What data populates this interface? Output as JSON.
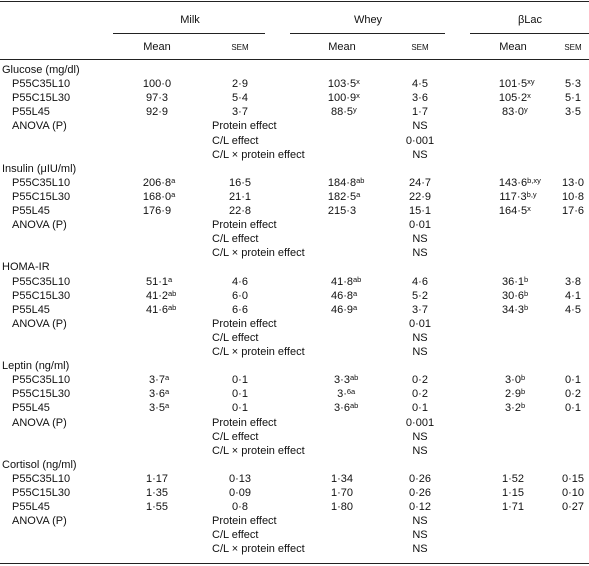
{
  "header": {
    "groups": [
      "Milk",
      "Whey",
      "βLac"
    ],
    "subheaders": [
      "Mean",
      "sem",
      "Mean",
      "sem",
      "Mean",
      "sem"
    ]
  },
  "sections": [
    {
      "title": "Glucose (mg/dl)",
      "rows": [
        {
          "label": "P55C35L10",
          "cells": [
            {
              "value": "100·0"
            },
            {
              "value": "2·9"
            },
            {
              "value": "103·5",
              "sup": "x"
            },
            {
              "value": "4·5"
            },
            {
              "value": "101·5",
              "sup": "xy"
            },
            {
              "value": "5·3"
            }
          ]
        },
        {
          "label": "P55C15L30",
          "cells": [
            {
              "value": "97·3"
            },
            {
              "value": "5·4"
            },
            {
              "value": "100·9",
              "sup": "x"
            },
            {
              "value": "3·6"
            },
            {
              "value": "105·2",
              "sup": "x"
            },
            {
              "value": "5·1"
            }
          ]
        },
        {
          "label": "P55L45",
          "cells": [
            {
              "value": "92·9"
            },
            {
              "value": "3·7"
            },
            {
              "value": "88·5",
              "sup": "y"
            },
            {
              "value": "1·7"
            },
            {
              "value": "83·0",
              "sup": "y"
            },
            {
              "value": "3·5"
            }
          ]
        }
      ],
      "anova": {
        "label": "ANOVA (P)",
        "effects": [
          {
            "name": "Protein effect",
            "value": "NS"
          },
          {
            "name": "C/L effect",
            "value": "0·001"
          },
          {
            "name": "C/L × protein effect",
            "value": "NS"
          }
        ]
      }
    },
    {
      "title": "Insulin (μIU/ml)",
      "rows": [
        {
          "label": "P55C35L10",
          "cells": [
            {
              "value": "206·8",
              "sup": "a"
            },
            {
              "value": "16·5"
            },
            {
              "value": "184·8",
              "sup": "ab"
            },
            {
              "value": "24·7"
            },
            {
              "value": "143·6",
              "sup": "b,xy"
            },
            {
              "value": "13·0"
            }
          ]
        },
        {
          "label": "P55C15L30",
          "cells": [
            {
              "value": "168·0",
              "sup": "a"
            },
            {
              "value": "21·1"
            },
            {
              "value": "182·5",
              "sup": "a"
            },
            {
              "value": "22·9"
            },
            {
              "value": "117·3",
              "sup": "b,y"
            },
            {
              "value": "10·8"
            }
          ]
        },
        {
          "label": "P55L45",
          "cells": [
            {
              "value": "176·9"
            },
            {
              "value": "22·8"
            },
            {
              "value": "215·3"
            },
            {
              "value": "15·1"
            },
            {
              "value": "164·5",
              "sup": "x"
            },
            {
              "value": "17·6"
            }
          ]
        }
      ],
      "anova": {
        "label": "ANOVA (P)",
        "effects": [
          {
            "name": "Protein effect",
            "value": "0·01"
          },
          {
            "name": "C/L effect",
            "value": "NS"
          },
          {
            "name": "C/L × protein effect",
            "value": "NS"
          }
        ]
      }
    },
    {
      "title": "HOMA-IR",
      "rows": [
        {
          "label": "P55C35L10",
          "cells": [
            {
              "value": "51·1",
              "sup": "a"
            },
            {
              "value": "4·6"
            },
            {
              "value": "41·8",
              "sup": "ab"
            },
            {
              "value": "4·6"
            },
            {
              "value": "36·1",
              "sup": "b"
            },
            {
              "value": "3·8"
            }
          ]
        },
        {
          "label": "P55C15L30",
          "cells": [
            {
              "value": "41·2",
              "sup": "ab"
            },
            {
              "value": "6·0"
            },
            {
              "value": "46·8",
              "sup": "a"
            },
            {
              "value": "5·2"
            },
            {
              "value": "30·6",
              "sup": "b"
            },
            {
              "value": "4·1"
            }
          ]
        },
        {
          "label": "P55L45",
          "cells": [
            {
              "value": "41·6",
              "sup": "ab"
            },
            {
              "value": "6·6"
            },
            {
              "value": "46·9",
              "sup": "a"
            },
            {
              "value": "3·7"
            },
            {
              "value": "34·3",
              "sup": "b"
            },
            {
              "value": "4·5"
            }
          ]
        }
      ],
      "anova": {
        "label": "ANOVA (P)",
        "effects": [
          {
            "name": "Protein effect",
            "value": "0·01"
          },
          {
            "name": "C/L effect",
            "value": "NS"
          },
          {
            "name": "C/L × protein effect",
            "value": "NS"
          }
        ]
      }
    },
    {
      "title": "Leptin (ng/ml)",
      "rows": [
        {
          "label": "P55C35L10",
          "cells": [
            {
              "value": "3·7",
              "sup": "a"
            },
            {
              "value": "0·1"
            },
            {
              "value": "3·3",
              "sup": "ab"
            },
            {
              "value": "0·2"
            },
            {
              "value": "3·0",
              "sup": "b"
            },
            {
              "value": "0·1"
            }
          ]
        },
        {
          "label": "P55C15L30",
          "cells": [
            {
              "value": "3·6",
              "sup": "a"
            },
            {
              "value": "0·1"
            },
            {
              "value": "3·",
              "sup": "6a"
            },
            {
              "value": "0·2"
            },
            {
              "value": "2·9",
              "sup": "b"
            },
            {
              "value": "0·2"
            }
          ]
        },
        {
          "label": "P55L45",
          "cells": [
            {
              "value": "3·5",
              "sup": "a"
            },
            {
              "value": "0·1"
            },
            {
              "value": "3·6",
              "sup": "ab"
            },
            {
              "value": "0·1"
            },
            {
              "value": "3·2",
              "sup": "b"
            },
            {
              "value": "0·1"
            }
          ]
        }
      ],
      "anova": {
        "label": "ANOVA (P)",
        "effects": [
          {
            "name": "Protein effect",
            "value": "0·001"
          },
          {
            "name": "C/L effect",
            "value": "NS"
          },
          {
            "name": "C/L × protein effect",
            "value": "NS"
          }
        ]
      }
    },
    {
      "title": "Cortisol (ng/ml)",
      "rows": [
        {
          "label": "P55C35L10",
          "cells": [
            {
              "value": "1·17"
            },
            {
              "value": "0·13"
            },
            {
              "value": "1·34"
            },
            {
              "value": "0·26"
            },
            {
              "value": "1·52"
            },
            {
              "value": "0·15"
            }
          ]
        },
        {
          "label": "P55C15L30",
          "cells": [
            {
              "value": "1·35"
            },
            {
              "value": "0·09"
            },
            {
              "value": "1·70"
            },
            {
              "value": "0·26"
            },
            {
              "value": "1·15"
            },
            {
              "value": "0·10"
            }
          ]
        },
        {
          "label": "P55L45",
          "cells": [
            {
              "value": "1·55"
            },
            {
              "value": "0·8"
            },
            {
              "value": "1·80"
            },
            {
              "value": "0·12"
            },
            {
              "value": "1·71"
            },
            {
              "value": "0·27"
            }
          ]
        }
      ],
      "anova": {
        "label": "ANOVA (P)",
        "effects": [
          {
            "name": "Protein effect",
            "value": "NS"
          },
          {
            "name": "C/L effect",
            "value": "NS"
          },
          {
            "name": "C/L × protein effect",
            "value": "NS"
          }
        ]
      }
    }
  ]
}
